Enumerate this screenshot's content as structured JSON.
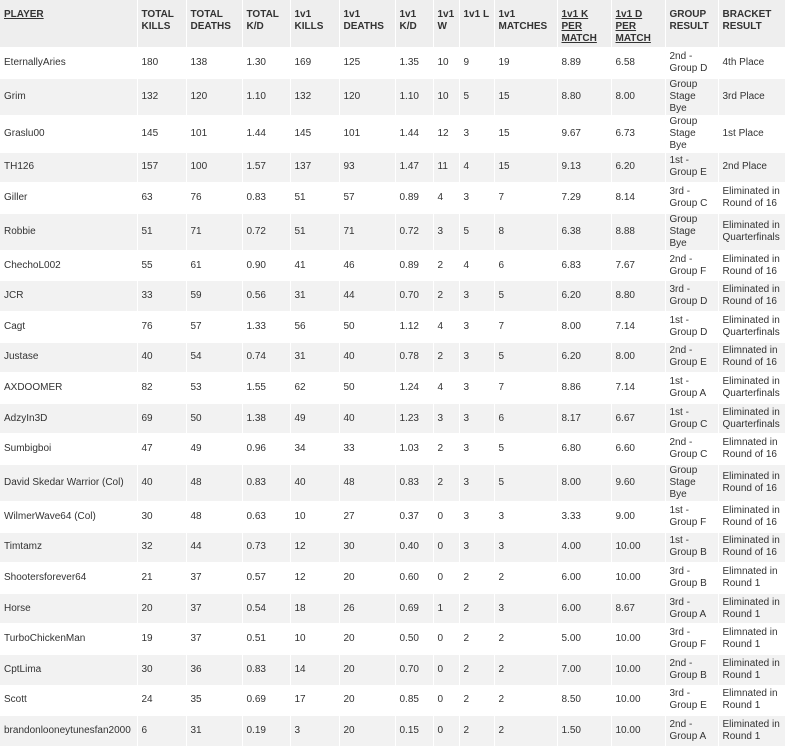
{
  "headers": [
    {
      "key": "player",
      "label": "PLAYER",
      "underline": true
    },
    {
      "key": "total_kills",
      "label": "TOTAL KILLS",
      "underline": false
    },
    {
      "key": "total_deaths",
      "label": "TOTAL DEATHS",
      "underline": false
    },
    {
      "key": "total_kd",
      "label": "TOTAL K/D",
      "underline": false
    },
    {
      "key": "v_kills",
      "label": "1v1 KILLS",
      "underline": false
    },
    {
      "key": "v_deaths",
      "label": "1v1 DEATHS",
      "underline": false
    },
    {
      "key": "v_kd",
      "label": "1v1 K/D",
      "underline": false
    },
    {
      "key": "v_w",
      "label": "1v1 W",
      "underline": false
    },
    {
      "key": "v_l",
      "label": "1v1 L",
      "underline": false
    },
    {
      "key": "v_matches",
      "label": "1v1 MATCHES",
      "underline": false
    },
    {
      "key": "k_per_match",
      "label": "1v1 K PER MATCH",
      "underline": true
    },
    {
      "key": "d_per_match",
      "label": "1v1 D PER MATCH",
      "underline": true
    },
    {
      "key": "group_result",
      "label": "GROUP RESULT",
      "underline": false
    },
    {
      "key": "bracket_result",
      "label": "BRACKET RESULT",
      "underline": false
    }
  ],
  "rows": [
    [
      "EternallyAries",
      "180",
      "138",
      "1.30",
      "169",
      "125",
      "1.35",
      "10",
      "9",
      "19",
      "8.89",
      "6.58",
      "2nd - Group D",
      "4th Place"
    ],
    [
      "Grim",
      "132",
      "120",
      "1.10",
      "132",
      "120",
      "1.10",
      "10",
      "5",
      "15",
      "8.80",
      "8.00",
      "Group Stage Bye",
      "3rd Place"
    ],
    [
      "Graslu00",
      "145",
      "101",
      "1.44",
      "145",
      "101",
      "1.44",
      "12",
      "3",
      "15",
      "9.67",
      "6.73",
      "Group Stage Bye",
      "1st Place"
    ],
    [
      "TH126",
      "157",
      "100",
      "1.57",
      "137",
      "93",
      "1.47",
      "11",
      "4",
      "15",
      "9.13",
      "6.20",
      "1st - Group E",
      "2nd Place"
    ],
    [
      "Giller",
      "63",
      "76",
      "0.83",
      "51",
      "57",
      "0.89",
      "4",
      "3",
      "7",
      "7.29",
      "8.14",
      "3rd - Group C",
      "Eliminated in Round of 16"
    ],
    [
      "Robbie",
      "51",
      "71",
      "0.72",
      "51",
      "71",
      "0.72",
      "3",
      "5",
      "8",
      "6.38",
      "8.88",
      "Group Stage Bye",
      "Eliminated in Quarterfinals"
    ],
    [
      "ChechoL002",
      "55",
      "61",
      "0.90",
      "41",
      "46",
      "0.89",
      "2",
      "4",
      "6",
      "6.83",
      "7.67",
      "2nd - Group F",
      "Eliminated in Round of 16"
    ],
    [
      "JCR",
      "33",
      "59",
      "0.56",
      "31",
      "44",
      "0.70",
      "2",
      "3",
      "5",
      "6.20",
      "8.80",
      "3rd - Group D",
      "Eliminated in Round of 16"
    ],
    [
      "Cagt",
      "76",
      "57",
      "1.33",
      "56",
      "50",
      "1.12",
      "4",
      "3",
      "7",
      "8.00",
      "7.14",
      "1st - Group D",
      "Eliminated in Quarterfinals"
    ],
    [
      "Justase",
      "40",
      "54",
      "0.74",
      "31",
      "40",
      "0.78",
      "2",
      "3",
      "5",
      "6.20",
      "8.00",
      "2nd - Group E",
      "Elimnated in Round of 16"
    ],
    [
      "AXDOOMER",
      "82",
      "53",
      "1.55",
      "62",
      "50",
      "1.24",
      "4",
      "3",
      "7",
      "8.86",
      "7.14",
      "1st - Group A",
      "Eliminated in Quarterfinals"
    ],
    [
      "AdzyIn3D",
      "69",
      "50",
      "1.38",
      "49",
      "40",
      "1.23",
      "3",
      "3",
      "6",
      "8.17",
      "6.67",
      "1st - Group C",
      "Eliminated in Quarterfinals"
    ],
    [
      "Sumbigboi",
      "47",
      "49",
      "0.96",
      "34",
      "33",
      "1.03",
      "2",
      "3",
      "5",
      "6.80",
      "6.60",
      "2nd - Group C",
      "Elimnated in Round of 16"
    ],
    [
      "David Skedar Warrior (Col)",
      "40",
      "48",
      "0.83",
      "40",
      "48",
      "0.83",
      "2",
      "3",
      "5",
      "8.00",
      "9.60",
      "Group Stage Bye",
      "Eliminated in Round of 16"
    ],
    [
      "WilmerWave64 (Col)",
      "30",
      "48",
      "0.63",
      "10",
      "27",
      "0.37",
      "0",
      "3",
      "3",
      "3.33",
      "9.00",
      "1st - Group F",
      "Eliminated in Round of 16"
    ],
    [
      "Timtamz",
      "32",
      "44",
      "0.73",
      "12",
      "30",
      "0.40",
      "0",
      "3",
      "3",
      "4.00",
      "10.00",
      "1st - Group B",
      "Eliminated in Round of 16"
    ],
    [
      "Shootersforever64",
      "21",
      "37",
      "0.57",
      "12",
      "20",
      "0.60",
      "0",
      "2",
      "2",
      "6.00",
      "10.00",
      "3rd - Group B",
      "Elimnated in Round 1"
    ],
    [
      "Horse",
      "20",
      "37",
      "0.54",
      "18",
      "26",
      "0.69",
      "1",
      "2",
      "3",
      "6.00",
      "8.67",
      "3rd - Group A",
      "Eliminated in Round 1"
    ],
    [
      "TurboChickenMan",
      "19",
      "37",
      "0.51",
      "10",
      "20",
      "0.50",
      "0",
      "2",
      "2",
      "5.00",
      "10.00",
      "3rd - Group F",
      "Elimnated in Round 1"
    ],
    [
      "CptLima",
      "30",
      "36",
      "0.83",
      "14",
      "20",
      "0.70",
      "0",
      "2",
      "2",
      "7.00",
      "10.00",
      "2nd - Group B",
      "Eliminated in Round 1"
    ],
    [
      "Scott",
      "24",
      "35",
      "0.69",
      "17",
      "20",
      "0.85",
      "0",
      "2",
      "2",
      "8.50",
      "10.00",
      "3rd - Group E",
      "Elimnated in Round 1"
    ],
    [
      "brandonlooneytunesfan2000",
      "6",
      "31",
      "0.19",
      "3",
      "20",
      "0.15",
      "0",
      "2",
      "2",
      "1.50",
      "10.00",
      "2nd - Group A",
      "Eliminated in Round 1"
    ]
  ]
}
